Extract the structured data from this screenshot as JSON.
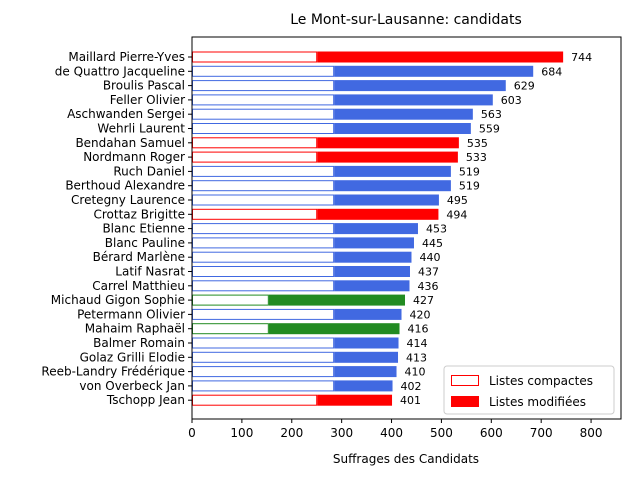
{
  "chart_data": {
    "type": "bar",
    "orientation": "horizontal",
    "stacked": true,
    "title": "Le Mont-sur-Lausanne: candidats",
    "xlabel": "Suffrages des Candidats",
    "ylabel": "",
    "xlim": [
      0,
      860
    ],
    "xticks": [
      0,
      100,
      200,
      300,
      400,
      500,
      600,
      700,
      800
    ],
    "grid": false,
    "legend_placement": "lower-right",
    "legend": [
      {
        "label": "Listes compactes",
        "style": "outline",
        "color": "#ff0000"
      },
      {
        "label": "Listes modifiées",
        "style": "filled",
        "color": "#ff0000"
      }
    ],
    "list_colors": {
      "red": "#ff0000",
      "blue": "#4169e1",
      "green": "#228b22"
    },
    "categories": [
      {
        "name": "Maillard Pierre-Yves",
        "compact": 251,
        "total": 744,
        "color": "red"
      },
      {
        "name": "de Quattro Jacqueline",
        "compact": 285,
        "total": 684,
        "color": "blue"
      },
      {
        "name": "Broulis Pascal",
        "compact": 285,
        "total": 629,
        "color": "blue"
      },
      {
        "name": "Feller Olivier",
        "compact": 285,
        "total": 603,
        "color": "blue"
      },
      {
        "name": "Aschwanden Sergei",
        "compact": 285,
        "total": 563,
        "color": "blue"
      },
      {
        "name": "Wehrli Laurent",
        "compact": 285,
        "total": 559,
        "color": "blue"
      },
      {
        "name": "Bendahan Samuel",
        "compact": 251,
        "total": 535,
        "color": "red"
      },
      {
        "name": "Nordmann Roger",
        "compact": 251,
        "total": 533,
        "color": "red"
      },
      {
        "name": "Ruch Daniel",
        "compact": 285,
        "total": 519,
        "color": "blue"
      },
      {
        "name": "Berthoud Alexandre",
        "compact": 285,
        "total": 519,
        "color": "blue"
      },
      {
        "name": "Cretegny Laurence",
        "compact": 285,
        "total": 495,
        "color": "blue"
      },
      {
        "name": "Crottaz Brigitte",
        "compact": 251,
        "total": 494,
        "color": "red"
      },
      {
        "name": "Blanc Etienne",
        "compact": 285,
        "total": 453,
        "color": "blue"
      },
      {
        "name": "Blanc Pauline",
        "compact": 285,
        "total": 445,
        "color": "blue"
      },
      {
        "name": "Bérard Marlène",
        "compact": 285,
        "total": 440,
        "color": "blue"
      },
      {
        "name": "Latif Nasrat",
        "compact": 285,
        "total": 437,
        "color": "blue"
      },
      {
        "name": "Carrel Matthieu",
        "compact": 285,
        "total": 436,
        "color": "blue"
      },
      {
        "name": "Michaud Gigon Sophie",
        "compact": 154,
        "total": 427,
        "color": "green"
      },
      {
        "name": "Petermann Olivier",
        "compact": 285,
        "total": 420,
        "color": "blue"
      },
      {
        "name": "Mahaim Raphaël",
        "compact": 154,
        "total": 416,
        "color": "green"
      },
      {
        "name": "Balmer Romain",
        "compact": 285,
        "total": 414,
        "color": "blue"
      },
      {
        "name": "Golaz Grilli Elodie",
        "compact": 285,
        "total": 413,
        "color": "blue"
      },
      {
        "name": "Reeb-Landry Frédérique",
        "compact": 285,
        "total": 410,
        "color": "blue"
      },
      {
        "name": "von Overbeck Jan",
        "compact": 285,
        "total": 402,
        "color": "blue"
      },
      {
        "name": "Tschopp Jean",
        "compact": 251,
        "total": 401,
        "color": "red"
      }
    ]
  }
}
